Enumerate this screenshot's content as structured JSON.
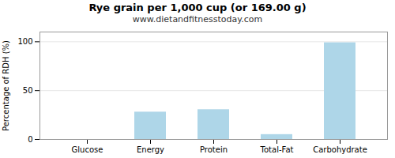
{
  "chart_data": {
    "type": "bar",
    "title": "Rye grain per 1,000 cup (or 169.00 g)",
    "subtitle": "www.dietandfitnesstoday.com",
    "ylabel": "Percentage of RDH (%)",
    "categories": [
      "Glucose",
      "Energy",
      "Protein",
      "Total-Fat",
      "Carbohydrate"
    ],
    "values": [
      0.0,
      28.0,
      30.5,
      5.0,
      99.0
    ],
    "color": "#aed6e8",
    "ylim": [
      0,
      110
    ],
    "yticks": [
      0,
      50,
      100
    ],
    "grid": true
  }
}
